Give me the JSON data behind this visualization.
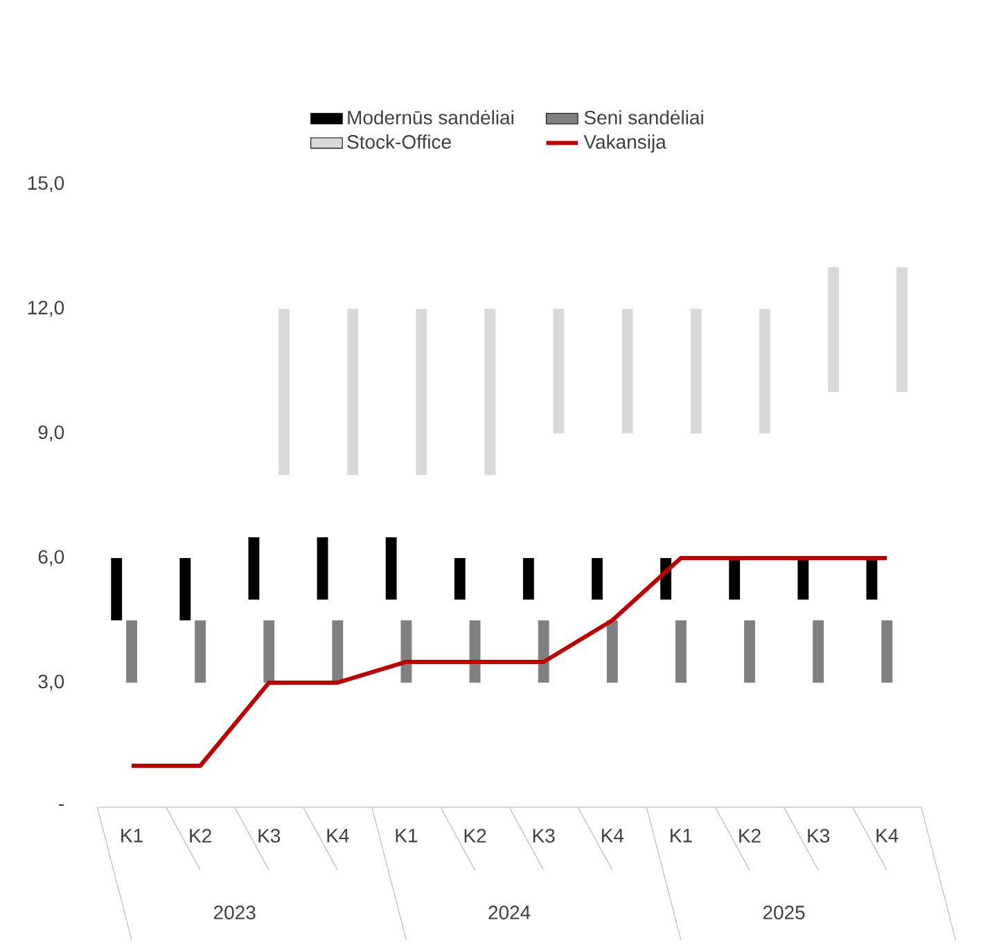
{
  "chart_data": {
    "type": "bar",
    "categories": [
      "K1",
      "K2",
      "K3",
      "K4",
      "K1",
      "K2",
      "K3",
      "K4",
      "K1",
      "K2",
      "K3",
      "K4"
    ],
    "series": [
      {
        "name": "Modernūs sandėliai",
        "color": "#000000",
        "base": [
          4.5,
          4.5,
          5,
          5,
          5,
          5,
          5,
          5,
          5,
          5,
          5,
          5
        ],
        "values": [
          1.5,
          1.5,
          1.5,
          1.5,
          1.5,
          1,
          1,
          1,
          1,
          1,
          1,
          1
        ]
      },
      {
        "name": "Seni sandėliai",
        "color": "#808080",
        "base": [
          3,
          3,
          3,
          3,
          3,
          3,
          3,
          3,
          3,
          3,
          3,
          3
        ],
        "values": [
          1.5,
          1.5,
          1.5,
          1.5,
          1.5,
          1.5,
          1.5,
          1.5,
          1.5,
          1.5,
          1.5,
          1.5
        ]
      },
      {
        "name": "Stock-Office",
        "color": "#d9d9d9",
        "base": [
          null,
          null,
          8,
          8,
          8,
          8,
          9,
          9,
          9,
          9,
          10,
          10
        ],
        "values": [
          null,
          null,
          4,
          4,
          4,
          4,
          3,
          3,
          3,
          3,
          3,
          3
        ]
      },
      {
        "name": "Vakansija",
        "type": "line",
        "color": "#c00000",
        "values": [
          1,
          1,
          3,
          3,
          3.5,
          3.5,
          3.5,
          4.5,
          6,
          6,
          6,
          6
        ]
      }
    ],
    "ylim": [
      0,
      15
    ],
    "yticks": [
      {
        "value": 0,
        "label": "-"
      },
      {
        "value": 3,
        "label": "3,0"
      },
      {
        "value": 6,
        "label": "6,0"
      },
      {
        "value": 9,
        "label": "9,0"
      },
      {
        "value": 12,
        "label": "12,0"
      },
      {
        "value": 15,
        "label": "15,0"
      }
    ],
    "legend": "top",
    "grid": false,
    "marker": "none",
    "line_style": "solid",
    "annotations": [
      "2023",
      "2024",
      "2025"
    ]
  }
}
